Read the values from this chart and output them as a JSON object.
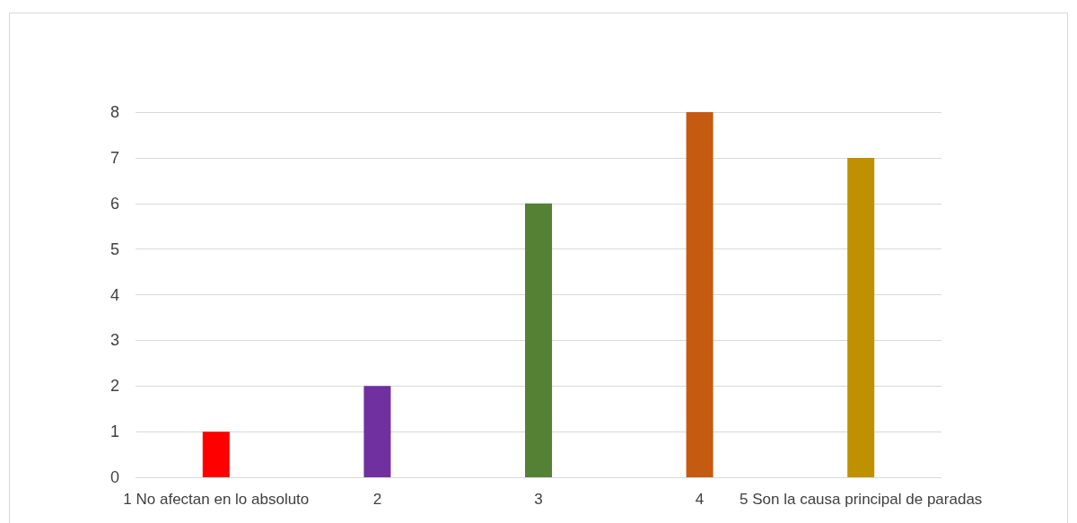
{
  "chart_data": {
    "type": "bar",
    "categories": [
      "1 No afectan en lo absoluto",
      "2",
      "3",
      "4",
      "5 Son la causa principal de paradas"
    ],
    "values": [
      1,
      2,
      6,
      8,
      7
    ],
    "colors": [
      "#ff0000",
      "#7030a0",
      "#548235",
      "#c55a11",
      "#bf9000"
    ],
    "ylim": [
      0,
      8
    ],
    "yticks": [
      0,
      1,
      2,
      3,
      4,
      5,
      6,
      7,
      8
    ],
    "grid": "y"
  }
}
